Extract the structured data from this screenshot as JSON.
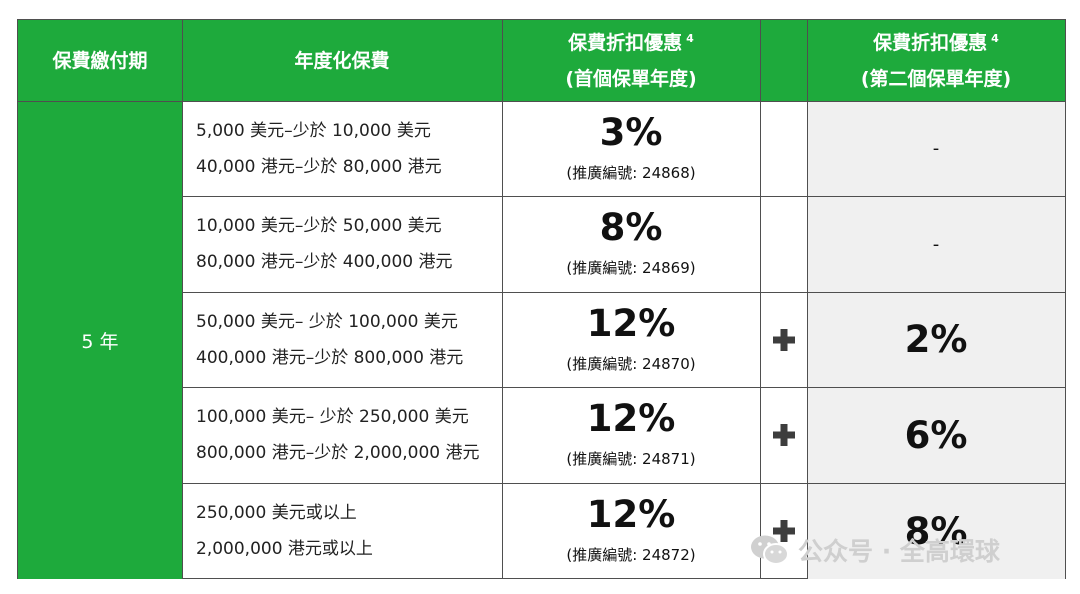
{
  "headers": {
    "payment_term": "保費繳付期",
    "annualized_premium": "年度化保費",
    "discount_first_line1": "保費折扣優惠",
    "discount_first_note": "4",
    "discount_first_line2": "(首個保單年度)",
    "discount_second_line1": "保費折扣優惠",
    "discount_second_note": "4",
    "discount_second_line2": "(第二個保單年度)"
  },
  "payment_period": "5 年",
  "rows": [
    {
      "premium_usd": "5,000 美元–少於 10,000 美元",
      "premium_hkd": "40,000 港元–少於 80,000 港元",
      "discount": "3%",
      "promo_code": "(推廣編號: 24868)",
      "plus": false,
      "second_year": "-"
    },
    {
      "premium_usd": "10,000 美元–少於 50,000 美元",
      "premium_hkd": "80,000 港元–少於 400,000 港元",
      "discount": "8%",
      "promo_code": "(推廣編號: 24869)",
      "plus": false,
      "second_year": "-"
    },
    {
      "premium_usd": "50,000 美元– 少於 100,000 美元",
      "premium_hkd": "400,000 港元–少於 800,000 港元",
      "discount": "12%",
      "promo_code": "(推廣編號: 24870)",
      "plus": true,
      "second_year": "2%"
    },
    {
      "premium_usd": "100,000 美元– 少於 250,000 美元",
      "premium_hkd": "800,000 港元–少於 2,000,000 港元",
      "discount": "12%",
      "promo_code": "(推廣編號: 24871)",
      "plus": true,
      "second_year": "6%"
    },
    {
      "premium_usd": "250,000 美元或以上",
      "premium_hkd": "2,000,000 港元或以上",
      "discount": "12%",
      "promo_code": "(推廣編號: 24872)",
      "plus": true,
      "second_year": "8%"
    }
  ],
  "plus_icon": "plus-icon",
  "watermark": {
    "text": "公众号 · 全高環球",
    "icon": "wechat-icon"
  },
  "colors": {
    "header_green": "#1eaa3c",
    "second_year_bg": "#f0f0f0"
  }
}
